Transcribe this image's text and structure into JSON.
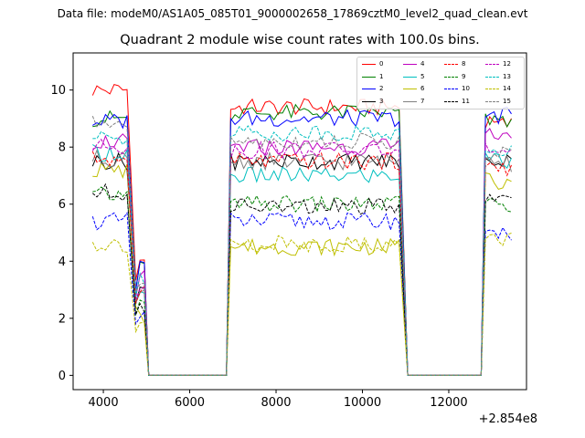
{
  "figure": {
    "suptitle": "Data file: modeM0/AS1A05_085T01_9000002658_17869cztM0_level2_quad_clean.evt",
    "title": "Quadrant 2 module wise count rates with 100.0s bins.",
    "x_offset_label": "+2.854e8"
  },
  "chart_data": {
    "type": "line",
    "title": "Quadrant 2 module wise count rates with 100.0s bins.",
    "xlabel": "",
    "ylabel": "",
    "x_offset": 285400000,
    "xlim": [
      3300,
      13800
    ],
    "ylim": [
      -0.5,
      11.3
    ],
    "xticks": [
      4000,
      6000,
      8000,
      10000,
      12000
    ],
    "xtick_labels": [
      "4000",
      "6000",
      "8000",
      "10000",
      "12000"
    ],
    "yticks": [
      0,
      2,
      4,
      6,
      8,
      10
    ],
    "ytick_labels": [
      "0",
      "2",
      "4",
      "6",
      "8",
      "10"
    ],
    "grid": false,
    "legend_position": "top-right",
    "legend_columns": 4,
    "bin_size_s": 100,
    "segments": [
      {
        "x_start": 3750,
        "x_end": 4550,
        "ramp_to": 4850
      },
      {
        "x_start": 4850,
        "x_end": 4950,
        "ramp_to": 5050
      },
      {
        "x_start": 6950,
        "x_end": 10850,
        "ramp_to": 11050
      },
      {
        "x_start": 12850,
        "x_end": 13450,
        "ramp_to": 13450
      }
    ],
    "series": [
      {
        "name": "0",
        "color": "#ff0000",
        "dash": "solid",
        "level": 9.4,
        "segment_levels": [
          10.0,
          4.0,
          9.4,
          8.8
        ]
      },
      {
        "name": "1",
        "color": "#008000",
        "dash": "solid",
        "level": 9.2,
        "segment_levels": [
          9.0,
          3.8,
          9.2,
          9.0
        ]
      },
      {
        "name": "2",
        "color": "#0000ff",
        "dash": "solid",
        "level": 9.0,
        "segment_levels": [
          8.9,
          3.9,
          9.0,
          9.1
        ]
      },
      {
        "name": "3",
        "color": "#000000",
        "dash": "solid",
        "level": 7.5,
        "segment_levels": [
          7.5,
          3.0,
          7.5,
          7.6
        ]
      },
      {
        "name": "4",
        "color": "#bf00bf",
        "dash": "solid",
        "level": 8.0,
        "segment_levels": [
          8.2,
          3.5,
          8.0,
          8.5
        ]
      },
      {
        "name": "5",
        "color": "#00bfbf",
        "dash": "solid",
        "level": 7.0,
        "segment_levels": [
          7.8,
          2.8,
          7.0,
          7.5
        ]
      },
      {
        "name": "6",
        "color": "#bfbf00",
        "dash": "solid",
        "level": 4.5,
        "segment_levels": [
          7.2,
          2.0,
          4.5,
          6.8
        ]
      },
      {
        "name": "7",
        "color": "#808080",
        "dash": "solid",
        "level": 7.5,
        "segment_levels": [
          7.6,
          3.0,
          7.5,
          7.4
        ]
      },
      {
        "name": "8",
        "color": "#ff0000",
        "dash": "dashed",
        "level": 7.5,
        "segment_levels": [
          7.6,
          3.0,
          7.5,
          7.3
        ]
      },
      {
        "name": "9",
        "color": "#008000",
        "dash": "dashed",
        "level": 6.0,
        "segment_levels": [
          6.3,
          2.5,
          6.0,
          6.0
        ]
      },
      {
        "name": "10",
        "color": "#0000ff",
        "dash": "dashed",
        "level": 5.4,
        "segment_levels": [
          5.4,
          2.1,
          5.4,
          5.0
        ]
      },
      {
        "name": "11",
        "color": "#000000",
        "dash": "dashed",
        "level": 5.9,
        "segment_levels": [
          6.4,
          2.4,
          5.9,
          6.1
        ]
      },
      {
        "name": "12",
        "color": "#bf00bf",
        "dash": "dashed",
        "level": 7.9,
        "segment_levels": [
          8.0,
          3.2,
          7.9,
          7.9
        ]
      },
      {
        "name": "13",
        "color": "#00bfbf",
        "dash": "dashed",
        "level": 8.5,
        "segment_levels": [
          8.3,
          3.4,
          8.5,
          8.0
        ]
      },
      {
        "name": "14",
        "color": "#bfbf00",
        "dash": "dashed",
        "level": 4.6,
        "segment_levels": [
          4.6,
          1.8,
          4.6,
          4.7
        ]
      },
      {
        "name": "15",
        "color": "#808080",
        "dash": "dashed",
        "level": 8.2,
        "segment_levels": [
          8.8,
          3.3,
          8.2,
          7.8
        ]
      }
    ]
  }
}
